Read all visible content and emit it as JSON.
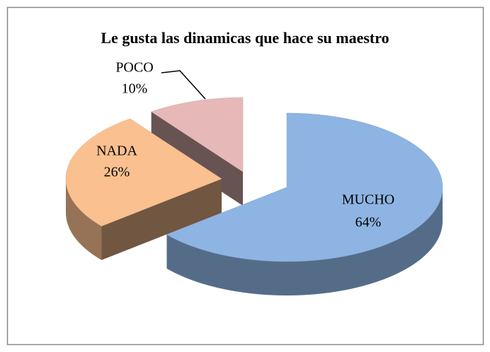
{
  "chart_data": {
    "type": "pie",
    "title": "Le gusta las dinamicas que hace su maestro",
    "categories": [
      "MUCHO",
      "NADA",
      "POCO"
    ],
    "values": [
      64,
      26,
      10
    ],
    "value_labels": [
      "64%",
      "26%",
      "10%"
    ],
    "colors": [
      "#8eb4e3",
      "#fac090",
      "#e6b9b8"
    ]
  }
}
